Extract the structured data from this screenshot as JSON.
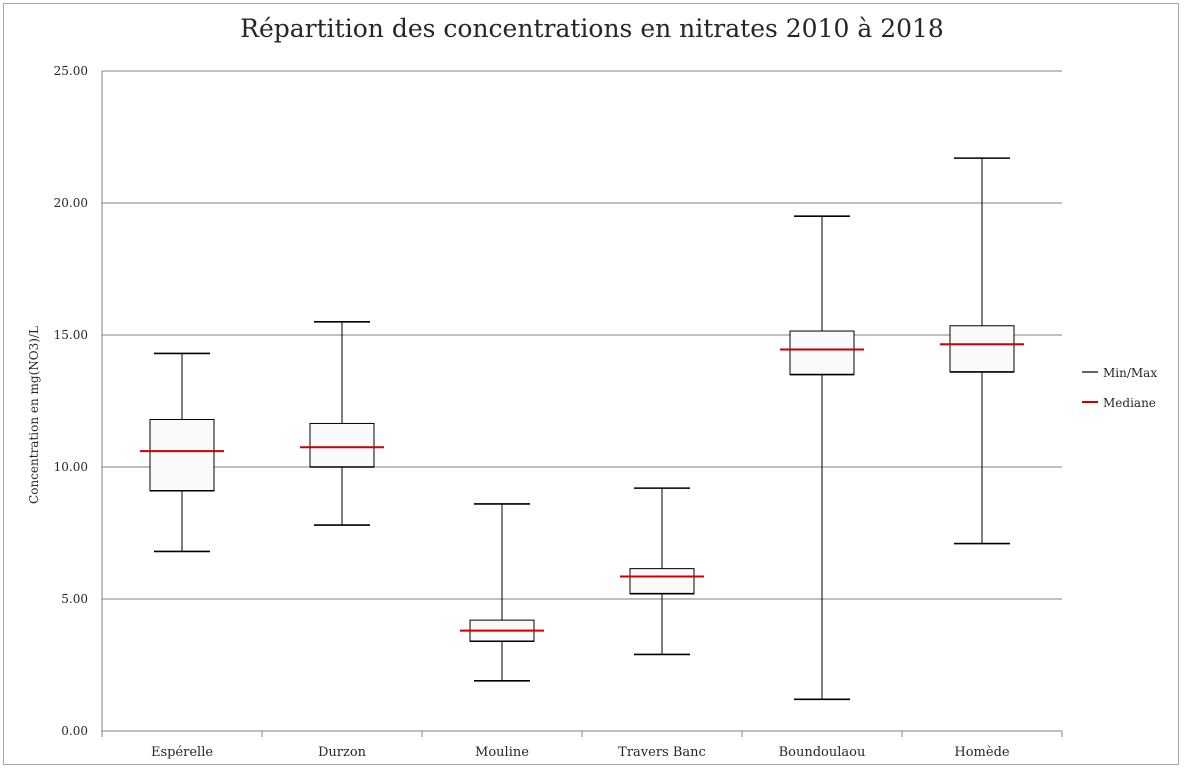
{
  "chart_data": {
    "type": "box",
    "title": "Répartition des concentrations en nitrates 2010 à 2018",
    "xlabel": "",
    "ylabel": "Concentration en mg(NO3)/L",
    "ylim": [
      0,
      25
    ],
    "yticks": [
      "0.00",
      "5.00",
      "10.00",
      "15.00",
      "20.00",
      "25.00"
    ],
    "ytick_values": [
      0,
      5,
      10,
      15,
      20,
      25
    ],
    "grid": true,
    "legend_position": "right",
    "categories": [
      "Espérelle",
      "Durzon",
      "Mouline",
      "Travers Banc",
      "Boundoulaou",
      "Homède"
    ],
    "min": [
      6.8,
      7.8,
      1.9,
      2.9,
      1.2,
      7.1
    ],
    "q1": [
      9.1,
      10.0,
      3.4,
      5.2,
      13.5,
      13.6
    ],
    "median": [
      10.6,
      10.75,
      3.8,
      5.85,
      14.45,
      14.65
    ],
    "q3": [
      11.8,
      11.65,
      4.2,
      6.15,
      15.15,
      15.35
    ],
    "max": [
      14.3,
      15.5,
      8.6,
      9.2,
      19.5,
      21.7
    ],
    "legend": [
      {
        "name": "Min/Max",
        "color": "#000000"
      },
      {
        "name": "Mediane",
        "color": "#cc0000"
      }
    ],
    "colors": {
      "box_fill": "#fafafa",
      "box_stroke": "#000000",
      "median": "#cc0000",
      "grid": "#808080"
    }
  }
}
